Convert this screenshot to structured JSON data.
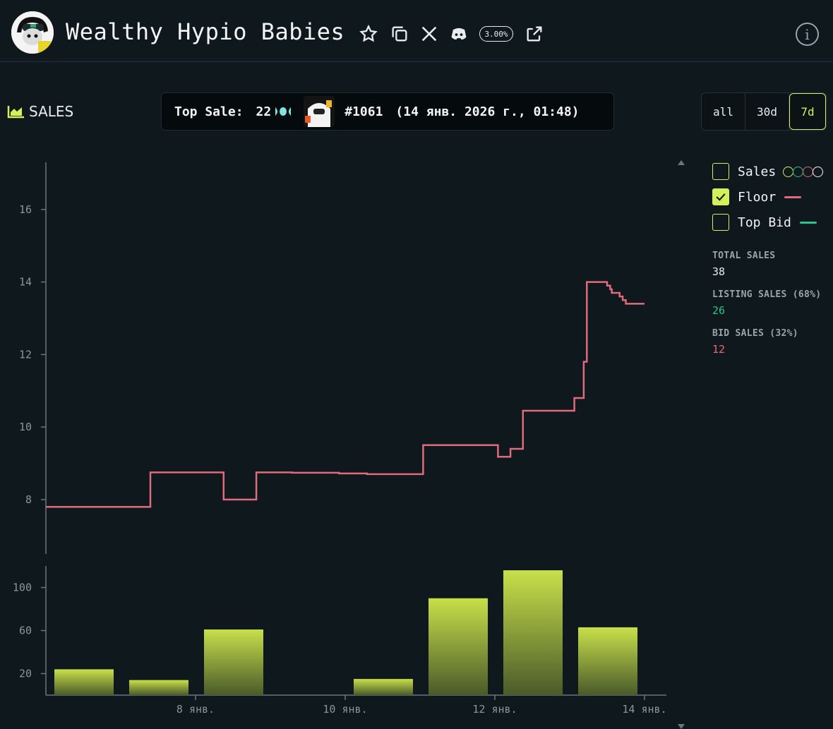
{
  "header": {
    "title": "Wealthy Hypio Babies",
    "royalty_badge": "3.00%",
    "info_glyph": "i"
  },
  "toolbar": {
    "sales_label": "SALES",
    "top_sale": {
      "label": "Top Sale:",
      "price": "22",
      "token": "#1061",
      "date": "(14 янв. 2026 г., 01:48)"
    },
    "ranges": [
      "all",
      "30d",
      "7d"
    ],
    "selected_range": "7d"
  },
  "legend": {
    "items": [
      {
        "label": "Sales",
        "checked": false,
        "circle_colors": [
          "#d4f15a",
          "#29c48a",
          "#e06b7d",
          "#f3f5f6"
        ]
      },
      {
        "label": "Floor",
        "checked": true,
        "color": "#e06b7d"
      },
      {
        "label": "Top Bid",
        "checked": false,
        "color": "#29c48a"
      }
    ]
  },
  "stats": {
    "total_label": "TOTAL SALES",
    "total_value": "38",
    "listing_label": "LISTING SALES (68%)",
    "listing_value": "26",
    "bid_label": "BID SALES (32%)",
    "bid_value": "12"
  },
  "colors": {
    "accent": "#d4f15a",
    "floor": "#e06b7d",
    "listing": "#29c48a",
    "bid": "#e06b7d"
  },
  "chart_data": [
    {
      "type": "line",
      "series": [
        {
          "name": "Floor",
          "x": [
            "2026-01-06 12:00",
            "2026-01-07 21:30",
            "2026-01-07 21:30",
            "2026-01-08 21:00",
            "2026-01-08 21:00",
            "2026-01-09 07:30",
            "2026-01-09 07:30",
            "2026-01-09 19:00",
            "2026-01-09 19:00",
            "2026-01-10 10:00",
            "2026-01-10 10:00",
            "2026-01-10 19:00",
            "2026-01-10 19:00",
            "2026-01-11 13:00",
            "2026-01-11 13:00",
            "2026-01-12 13:00",
            "2026-01-12 13:00",
            "2026-01-12 17:00",
            "2026-01-12 17:00",
            "2026-01-12 20:00",
            "2026-01-12 20:00",
            "2026-01-12 21:00",
            "2026-01-12 21:00",
            "2026-01-13 13:30",
            "2026-01-13 13:30",
            "2026-01-13 16:30",
            "2026-01-13 16:30",
            "2026-01-13 17:30",
            "2026-01-13 17:30",
            "2026-01-14 00:00",
            "2026-01-14 00:00",
            "2026-01-14 01:00",
            "2026-01-14 01:00",
            "2026-01-14 01:30",
            "2026-01-14 01:30",
            "2026-01-14 04:00",
            "2026-01-14 04:00",
            "2026-01-14 05:00",
            "2026-01-14 05:00",
            "2026-01-14 06:00",
            "2026-01-14 06:00",
            "2026-01-14 07:00",
            "2026-01-14 07:00",
            "2026-01-14 12:00"
          ],
          "values": [
            7.8,
            7.8,
            8.75,
            8.75,
            8.0,
            8.0,
            8.75,
            8.75,
            8.74,
            8.74,
            8.72,
            8.72,
            8.7,
            8.7,
            9.5,
            9.5,
            9.18,
            9.18,
            9.4,
            9.4,
            9.4,
            9.4,
            10.45,
            10.45,
            10.8,
            10.8,
            11.8,
            11.8,
            14.0,
            14.0,
            13.9,
            13.9,
            13.8,
            13.8,
            13.7,
            13.7,
            13.6,
            13.6,
            13.5,
            13.5,
            13.4,
            13.4,
            13.4,
            13.4
          ]
        }
      ],
      "ylim": [
        6.5,
        17.3
      ],
      "yticks": [
        8,
        10,
        12,
        14,
        16
      ],
      "grid": false
    },
    {
      "type": "bar",
      "categories": [
        "2026-01-07",
        "2026-01-08",
        "2026-01-09",
        "2026-01-10",
        "2026-01-11",
        "2026-01-12",
        "2026-01-13",
        "2026-01-14"
      ],
      "values": [
        24,
        14,
        61,
        0,
        15,
        90,
        116,
        63
      ],
      "ylim": [
        0,
        120
      ],
      "yticks": [
        20,
        60,
        100
      ],
      "xtick_labels": [
        "8 янв.",
        "10 янв.",
        "12 янв.",
        "14 янв."
      ],
      "xtick_dates": [
        "2026-01-08",
        "2026-01-10",
        "2026-01-12",
        "2026-01-14"
      ]
    }
  ]
}
